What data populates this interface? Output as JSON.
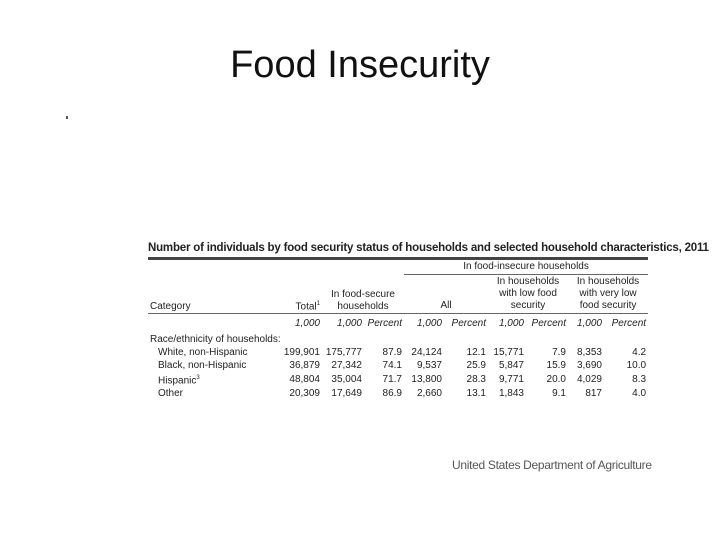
{
  "title": "Food Insecurity",
  "table": {
    "title": "Number of individuals by food security status of households and selected household characteristics, 2011",
    "group_header": "In food-insecure households",
    "columns": {
      "category": "Category",
      "total": "Total",
      "total_note": "1",
      "food_secure": "In food-secure households",
      "all": "All",
      "low": "In households with low food security",
      "very_low": "In households with very low food security"
    },
    "units": [
      "1,000",
      "1,000",
      "Percent",
      "1,000",
      "Percent",
      "1,000",
      "Percent",
      "1,000",
      "Percent"
    ],
    "section": "Race/ethnicity of households:",
    "rows": [
      {
        "label": "White, non-Hispanic",
        "values": [
          "199,901",
          "175,777",
          "87.9",
          "24,124",
          "12.1",
          "15,771",
          "7.9",
          "8,353",
          "4.2"
        ]
      },
      {
        "label": "Black, non-Hispanic",
        "values": [
          "36,879",
          "27,342",
          "74.1",
          "9,537",
          "25.9",
          "5,847",
          "15.9",
          "3,690",
          "10.0"
        ]
      },
      {
        "label": "Hispanic",
        "note": "3",
        "values": [
          "48,804",
          "35,004",
          "71.7",
          "13,800",
          "28.3",
          "9,771",
          "20.0",
          "4,029",
          "8.3"
        ]
      },
      {
        "label": "Other",
        "values": [
          "20,309",
          "17,649",
          "86.9",
          "2,660",
          "13.1",
          "1,843",
          "9.1",
          "817",
          "4.0"
        ]
      }
    ]
  },
  "source": "United States Department of Agriculture"
}
